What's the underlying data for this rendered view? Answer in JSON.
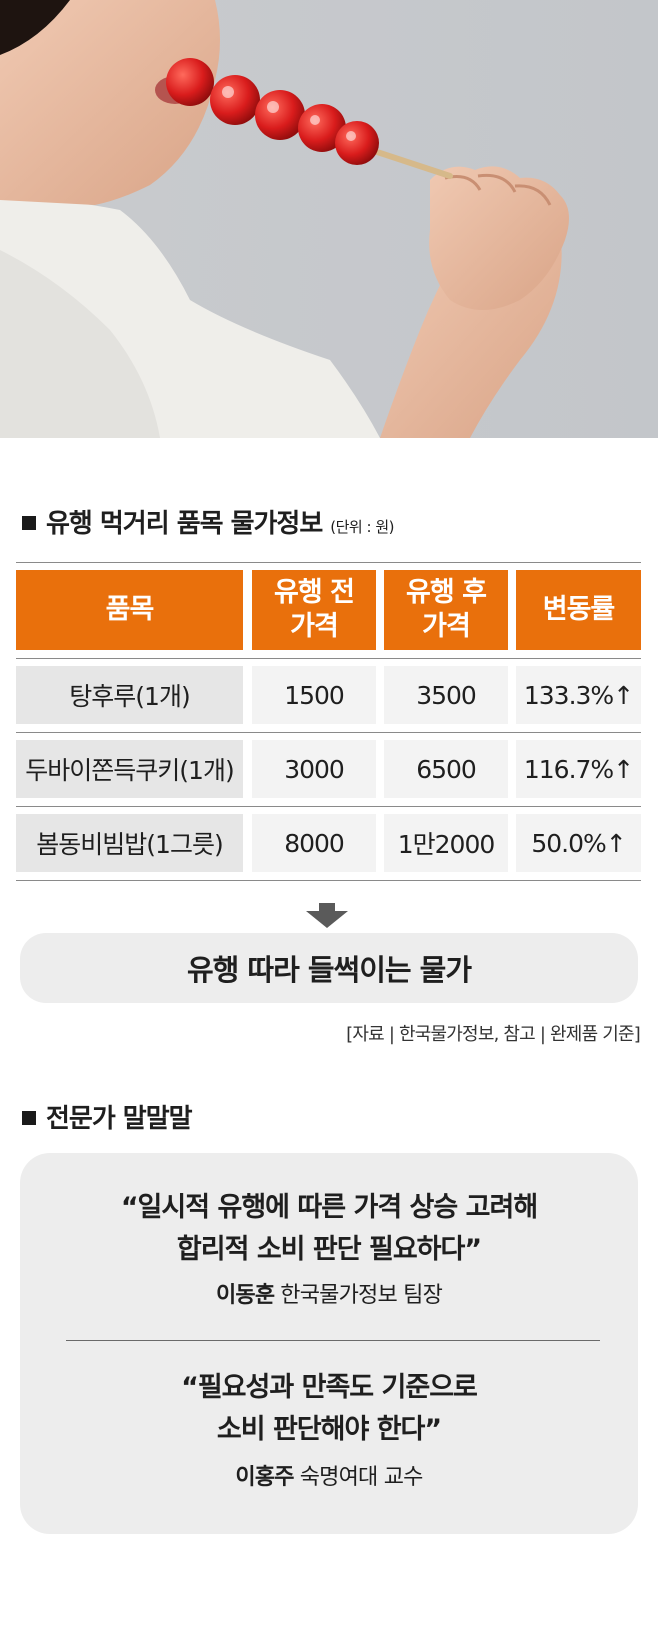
{
  "hero": {
    "image": "woman-eating-strawberry-tanghulu"
  },
  "price_section": {
    "title": "유행 먹거리 품목 물가정보",
    "unit": "(단위 : 원)"
  },
  "table": {
    "headers": {
      "item": "품목",
      "before_line1": "유행 전",
      "before_line2": "가격",
      "after_line1": "유행 후",
      "after_line2": "가격",
      "change": "변동률"
    },
    "rows": [
      {
        "item": "탕후루(1개)",
        "before": "1500",
        "after": "3500",
        "change": "133.3%↑"
      },
      {
        "item": "두바이쫀득쿠키(1개)",
        "before": "3000",
        "after": "6500",
        "change": "116.7%↑"
      },
      {
        "item": "봄동비빔밥(1그릇)",
        "before": "8000",
        "after": "1만2000",
        "change": "50.0%↑"
      }
    ]
  },
  "banner": {
    "text": "유행 따라 들썩이는 물가"
  },
  "source": "[자료 | 한국물가정보, 참고 | 완제품 기준]",
  "expert_section": {
    "title": "전문가 말말말"
  },
  "quotes": [
    {
      "line1": "“일시적 유행에 따른 가격 상승 고려해",
      "line2": "합리적 소비 판단 필요하다”",
      "name": "이동훈",
      "role": "한국물가정보 팀장"
    },
    {
      "line1": "“필요성과 만족도 기준으로",
      "line2": "소비 판단해야 한다”",
      "name": "이홍주",
      "role": "숙명여대 교수"
    }
  ],
  "colors": {
    "header_orange": "#e9700c",
    "item_bg": "#e6e6e6",
    "value_bg": "#f3f3f3",
    "card_bg": "#ededed"
  }
}
